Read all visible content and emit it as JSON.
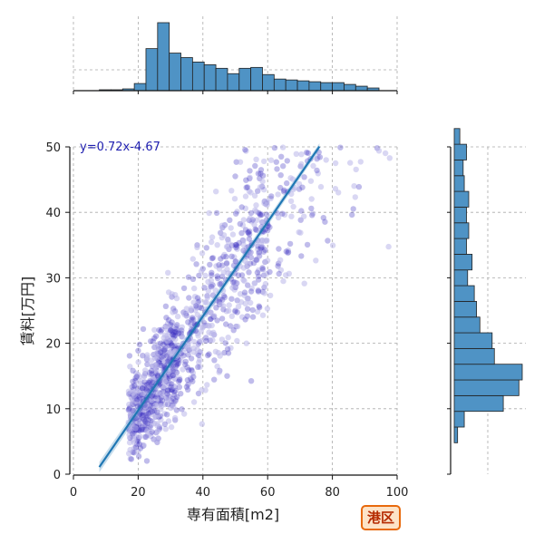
{
  "chart_data": {
    "type": "scatter",
    "xlabel": "専有面積[m2]",
    "ylabel": "賃料[万円]",
    "xlim": [
      0,
      100
    ],
    "ylim": [
      0,
      50
    ],
    "xticks": [
      "0",
      "20",
      "40",
      "60",
      "80",
      "100"
    ],
    "yticks": [
      "0",
      "10",
      "20",
      "30",
      "40",
      "50"
    ],
    "grid": true,
    "regression": {
      "label": "y=0.72x-4.67",
      "slope": 0.72,
      "intercept": -4.67,
      "x_range": [
        8,
        76
      ]
    },
    "scatter_color": "#3a2fc0",
    "line_color": "#1f77b4",
    "hist_color": "#4f93c5",
    "badge": {
      "label": "港区"
    },
    "hist_x": {
      "bin_start": 8,
      "bin_width": 3.6,
      "counts": [
        1,
        1,
        2,
        8,
        47,
        76,
        42,
        37,
        32,
        29,
        25,
        19,
        25,
        26,
        18,
        13,
        12,
        11,
        10,
        9,
        9,
        7,
        5,
        3
      ]
    },
    "hist_y": {
      "bin_start": 0,
      "bin_width": 2.4,
      "counts": [
        0,
        0,
        3,
        9,
        44,
        58,
        61,
        36,
        34,
        23,
        20,
        18,
        12,
        16,
        11,
        13,
        11,
        13,
        9,
        8,
        11,
        5
      ]
    }
  }
}
